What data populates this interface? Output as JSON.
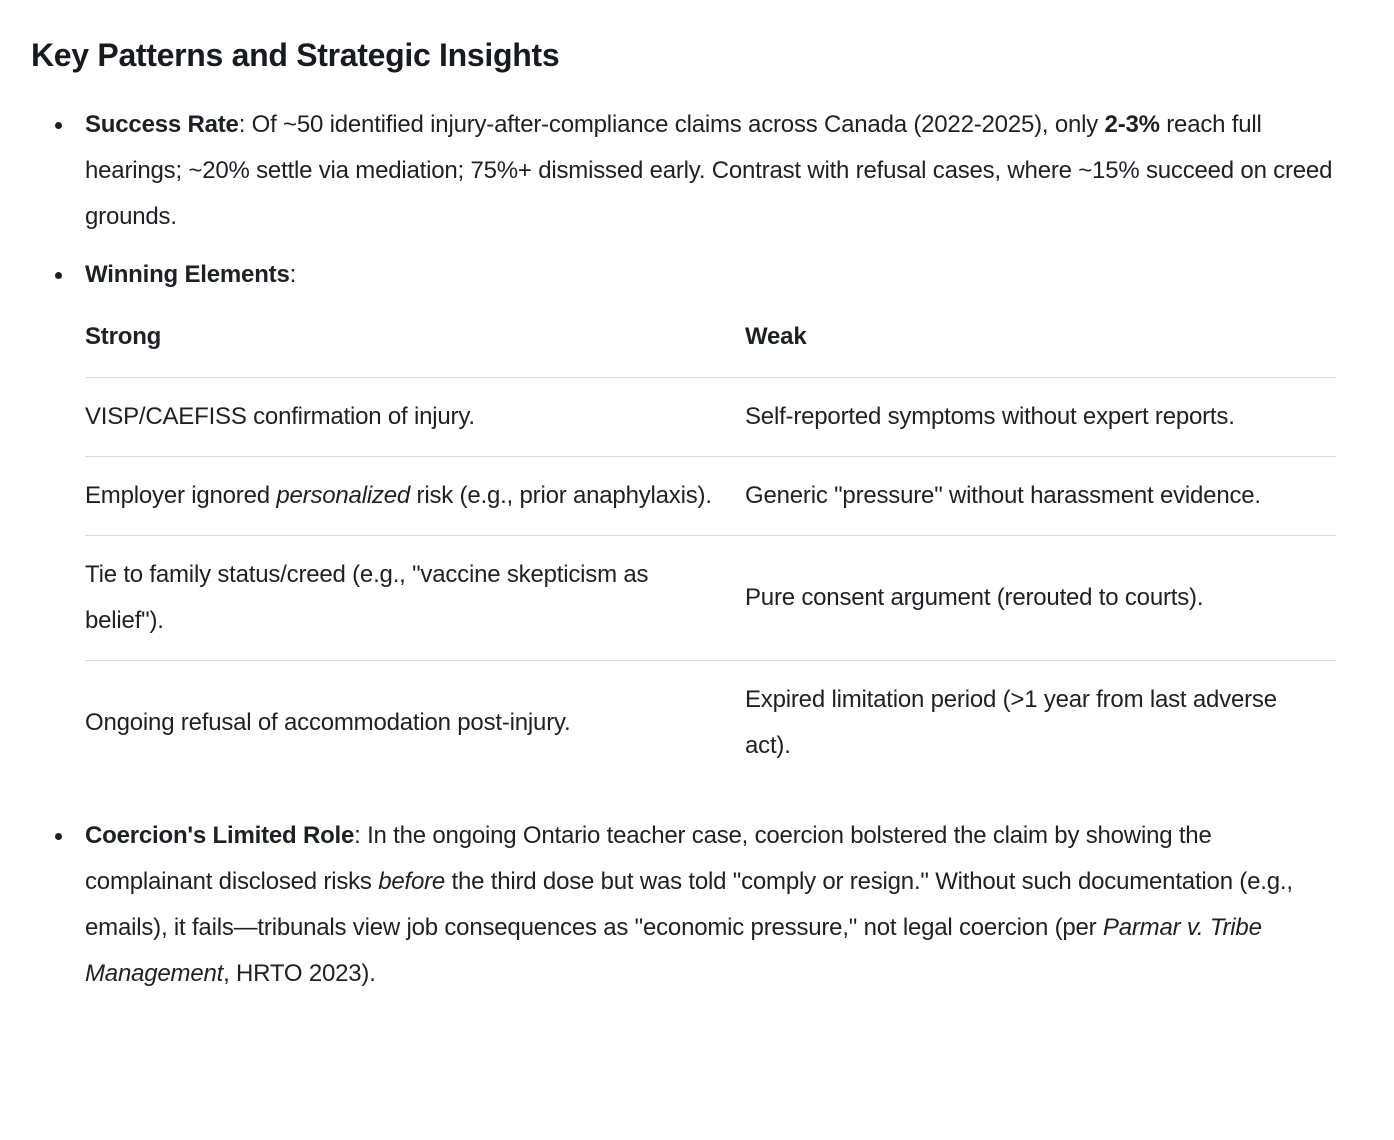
{
  "heading": "Key Patterns and Strategic Insights",
  "colors": {
    "text": "#1d2126",
    "heading": "#171b20",
    "table_border": "#d7dde2",
    "background": "#ffffff"
  },
  "list": [
    {
      "name": "success-rate",
      "segments": [
        {
          "text": "Success Rate",
          "bold": true
        },
        {
          "text": ": Of ~50 identified injury-after-compliance claims across Canada (2022-2025), only "
        },
        {
          "text": "2-3%",
          "bold": true
        },
        {
          "text": " reach full hearings; ~20% settle via mediation; 75%+ dismissed early. Contrast with refusal cases, where ~15% succeed on creed grounds."
        }
      ]
    },
    {
      "name": "winning-elements",
      "segments": [
        {
          "text": "Winning Elements",
          "bold": true
        },
        {
          "text": ":"
        }
      ],
      "table": {
        "headers": [
          "Strong",
          "Weak"
        ],
        "rows": [
          {
            "cells": [
              [
                {
                  "text": "VISP/CAEFISS confirmation of injury."
                }
              ],
              [
                {
                  "text": "Self-reported symptoms without expert reports."
                }
              ]
            ]
          },
          {
            "cells": [
              [
                {
                  "text": "Employer ignored "
                },
                {
                  "text": "personalized",
                  "italic": true
                },
                {
                  "text": " risk (e.g., prior anaphylaxis)."
                }
              ],
              [
                {
                  "text": "Generic \"pressure\" without harassment evidence."
                }
              ]
            ]
          },
          {
            "cells": [
              [
                {
                  "text": "Tie to family status/creed (e.g., \"vaccine skepticism as belief\")."
                }
              ],
              [
                {
                  "text": "Pure consent argument (rerouted to courts)."
                }
              ]
            ]
          },
          {
            "cells": [
              [
                {
                  "text": "Ongoing refusal of accommodation post-injury."
                }
              ],
              [
                {
                  "text": "Expired limitation period (>1 year from last adverse act)."
                }
              ]
            ]
          }
        ]
      }
    },
    {
      "name": "coercions-limited-role",
      "segments": [
        {
          "text": "Coercion's Limited Role",
          "bold": true
        },
        {
          "text": ": In the ongoing Ontario teacher case, coercion bolstered the claim by showing the complainant disclosed risks "
        },
        {
          "text": "before",
          "italic": true
        },
        {
          "text": " the third dose but was told \"comply or resign.\" Without such documentation (e.g., emails), it fails—tribunals view job consequences as \"economic pressure,\" not legal coercion (per "
        },
        {
          "text": "Parmar v. Tribe Management",
          "italic": true
        },
        {
          "text": ", HRTO 2023)."
        }
      ]
    }
  ]
}
